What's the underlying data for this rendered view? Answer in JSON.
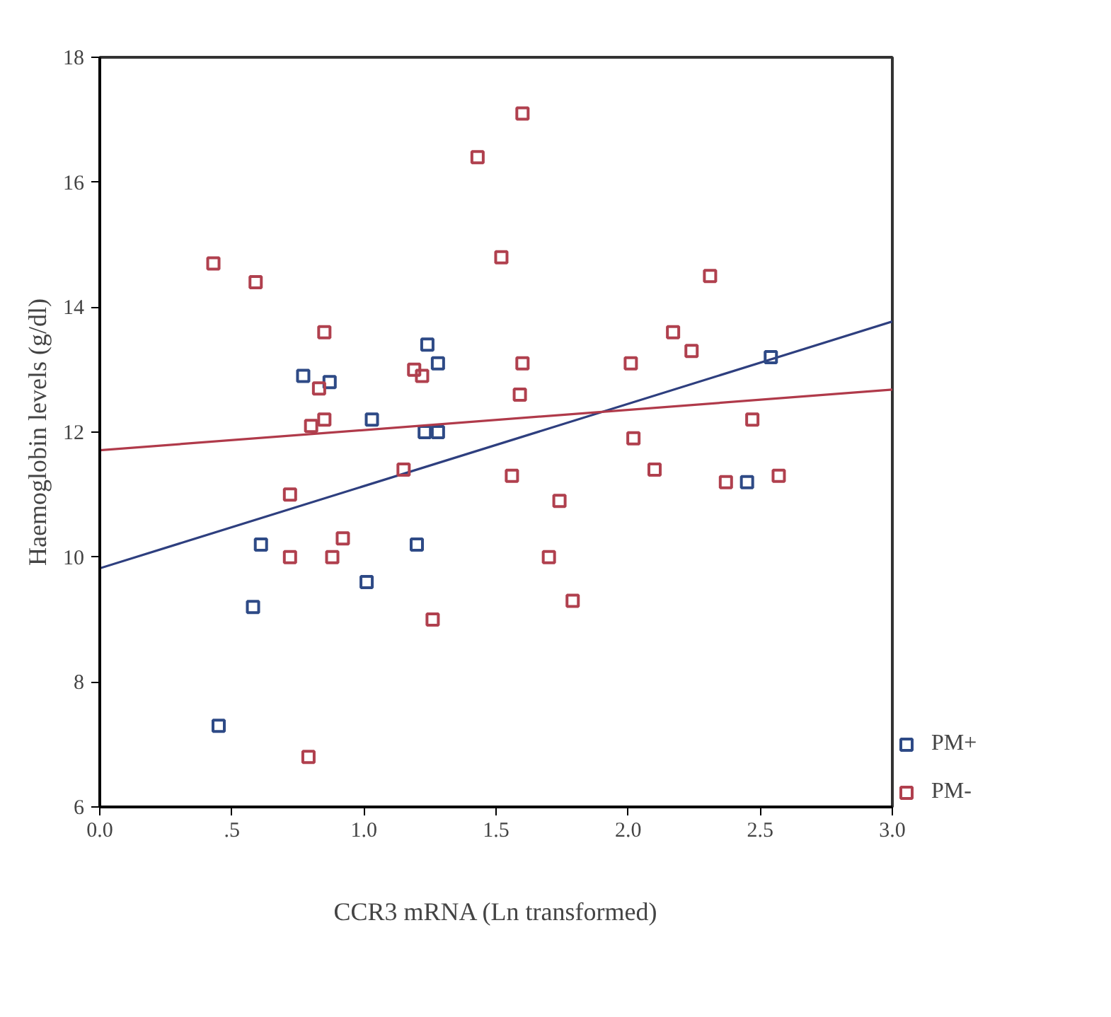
{
  "chart_data": {
    "type": "scatter",
    "xlabel": "CCR3 mRNA (Ln transformed)",
    "ylabel": "Haemoglobin levels (g/dl)",
    "xlim": [
      0,
      3
    ],
    "ylim": [
      6,
      18
    ],
    "xticks": [
      {
        "value": 0,
        "label": "0.0"
      },
      {
        "value": 0.5,
        "label": ".5"
      },
      {
        "value": 1,
        "label": "1.0"
      },
      {
        "value": 1.5,
        "label": "1.5"
      },
      {
        "value": 2,
        "label": "2.0"
      },
      {
        "value": 2.5,
        "label": "2.5"
      },
      {
        "value": 3,
        "label": "3.0"
      }
    ],
    "yticks": [
      6,
      8,
      10,
      12,
      14,
      16,
      18
    ],
    "grid": false,
    "legend": "bottom right",
    "marker": "square",
    "series": [
      {
        "type": "line",
        "marker": "none",
        "color": "#2e3f7f",
        "x": [
          0,
          3
        ],
        "values": [
          9.82,
          13.77
        ]
      },
      {
        "name": "PM+",
        "color": "#2e4a86",
        "x": [
          0.77,
          0.87,
          1.03,
          1.24,
          1.28,
          1.23,
          1.28,
          0.45,
          0.58,
          0.61,
          1.01,
          1.2,
          2.54,
          2.45
        ],
        "values": [
          12.9,
          12.8,
          12.2,
          13.4,
          13.1,
          12.0,
          12.0,
          7.3,
          9.2,
          10.2,
          9.6,
          10.2,
          13.2,
          11.2
        ]
      },
      {
        "type": "line",
        "marker": "none",
        "color": "#b03a4a",
        "x": [
          0,
          3
        ],
        "values": [
          11.71,
          12.68
        ]
      },
      {
        "name": "PM-",
        "color": "#b0404e",
        "x": [
          0.43,
          0.59,
          0.85,
          0.83,
          0.85,
          0.8,
          1.19,
          1.22,
          1.43,
          1.6,
          1.52,
          1.6,
          1.59,
          1.15,
          2.31,
          2.17,
          2.24,
          2.01,
          2.47,
          2.02,
          2.1,
          1.56,
          0.72,
          0.72,
          0.88,
          0.92,
          1.26,
          0.79,
          1.74,
          1.7,
          1.79,
          2.37,
          2.57
        ],
        "values": [
          14.7,
          14.4,
          13.6,
          12.7,
          12.2,
          12.1,
          13.0,
          12.9,
          16.4,
          17.1,
          14.8,
          13.1,
          12.6,
          11.4,
          14.5,
          13.6,
          13.3,
          13.1,
          12.2,
          11.9,
          11.4,
          11.3,
          11.0,
          10.0,
          10.0,
          10.3,
          9.0,
          6.8,
          10.9,
          10.0,
          9.3,
          11.2,
          11.3
        ]
      }
    ]
  }
}
